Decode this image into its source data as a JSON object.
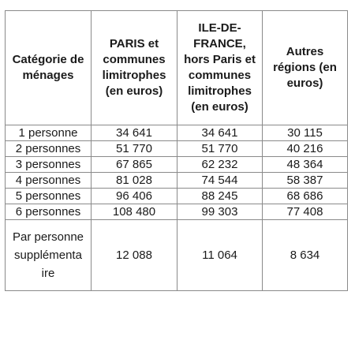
{
  "table": {
    "headers": [
      "Catégorie de\nménages",
      "PARIS et\ncommunes\nlimitrophes\n(en euros)",
      "ILE-DE-\nFRANCE,\nhors Paris et\ncommunes\nlimitrophes\n(en euros)",
      "Autres\nrégions (en\neuros)"
    ],
    "rows": [
      [
        "1 personne",
        "34 641",
        "34 641",
        "30 115"
      ],
      [
        "2 personnes",
        "51 770",
        "51 770",
        "40 216"
      ],
      [
        "3 personnes",
        "67 865",
        "62 232",
        "48 364"
      ],
      [
        "4 personnes",
        "81 028",
        "74 544",
        "58 387"
      ],
      [
        "5 personnes",
        "96 406",
        "88 245",
        "68 686"
      ],
      [
        "6 personnes",
        "108 480",
        "99 303",
        "77 408"
      ],
      [
        "Par personne\nsupplémenta\nire",
        "12 088",
        "11 064",
        "8 634"
      ]
    ]
  }
}
